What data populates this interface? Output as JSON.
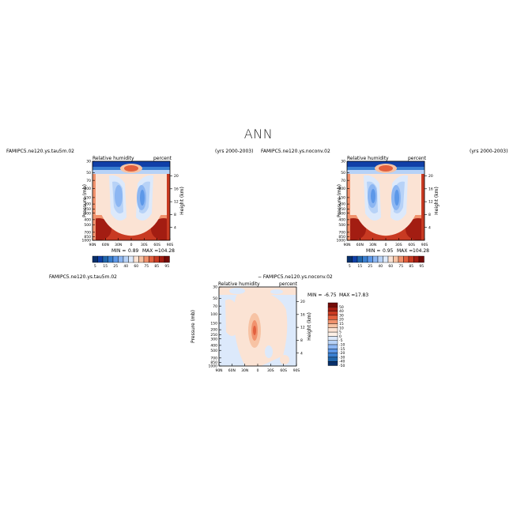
{
  "figure": {
    "title": "ANN"
  },
  "chart_data": [
    {
      "type": "heatmap",
      "case_name": "FAMIPC5.ne120.ys.tau5m.02",
      "years": "(yrs 2000-2003)",
      "variable": "Relative humidity",
      "units": "percent",
      "ylabel": "Pressure (mb)",
      "ylabel_right": "Height (km)",
      "x_ticks": [
        "90N",
        "60N",
        "30N",
        "0",
        "30S",
        "60S",
        "90S"
      ],
      "y_ticks": [
        1000,
        850,
        700,
        500,
        400,
        300,
        250,
        200,
        150,
        100,
        70,
        50,
        30
      ],
      "y_ticks_right": [
        4,
        8,
        12,
        16,
        20
      ],
      "colorbar_levels": [
        5,
        10,
        15,
        20,
        25,
        30,
        40,
        50,
        60,
        70,
        75,
        80,
        85,
        90,
        95
      ],
      "colorbar_labels": [
        "5",
        "15",
        "25",
        "40",
        "60",
        "75",
        "85",
        "95"
      ],
      "min_label": "MIN =",
      "min": "0.89",
      "max_label": "MAX =",
      "max": "104.28"
    },
    {
      "type": "heatmap",
      "case_name": "FAMIPC5.ne120.ys.noconv.02",
      "years": "(yrs 2000-2003)",
      "variable": "Relative humidity",
      "units": "percent",
      "ylabel": "Pressure (mb)",
      "ylabel_right": "Height (km)",
      "x_ticks": [
        "90N",
        "60N",
        "30N",
        "0",
        "30S",
        "60S",
        "90S"
      ],
      "y_ticks": [
        1000,
        850,
        700,
        500,
        400,
        300,
        250,
        200,
        150,
        100,
        70,
        50,
        30
      ],
      "y_ticks_right": [
        4,
        8,
        12,
        16,
        20
      ],
      "colorbar_levels": [
        5,
        10,
        15,
        20,
        25,
        30,
        40,
        50,
        60,
        70,
        75,
        80,
        85,
        90,
        95
      ],
      "colorbar_labels": [
        "5",
        "15",
        "25",
        "40",
        "60",
        "75",
        "85",
        "95"
      ],
      "min_label": "MIN =",
      "min": "0.95",
      "max_label": "MAX =",
      "max": "104.28"
    },
    {
      "type": "heatmap",
      "case_name": "FAMIPC5.ne120.ys.tau5m.02",
      "diff_label": "− FAMIPC5.ne120.ys.noconv.02",
      "variable": "Relative humidity",
      "units": "percent",
      "ylabel": "Pressure (mb)",
      "ylabel_right": "Height (km)",
      "x_ticks": [
        "90N",
        "60N",
        "30N",
        "0",
        "30S",
        "60S",
        "90S"
      ],
      "y_ticks": [
        1000,
        850,
        700,
        500,
        400,
        300,
        250,
        200,
        150,
        100,
        70,
        50,
        30
      ],
      "y_ticks_right": [
        4,
        8,
        12,
        16,
        20
      ],
      "colorbar_levels": [
        50,
        40,
        30,
        20,
        15,
        10,
        5,
        0,
        -5,
        -10,
        -15,
        -20,
        -30,
        -40,
        -50
      ],
      "colorbar_labels": [
        "50",
        "40",
        "30",
        "20",
        "15",
        "10",
        "5",
        "0",
        "-5",
        "-10",
        "-15",
        "-20",
        "-30",
        "-40",
        "-50"
      ],
      "min_label": "MIN =",
      "min": "-6.75",
      "max_label": "MAX =",
      "max": "17.83"
    }
  ],
  "colors": {
    "abs_scale": [
      "#08306b",
      "#1040a8",
      "#2166ac",
      "#3a7fd0",
      "#5d98e8",
      "#8cb6f2",
      "#b7d2f7",
      "#dce9fb",
      "#fbe3d4",
      "#f7c3a4",
      "#f1926d",
      "#e2603e",
      "#c83a22",
      "#a31d12",
      "#730a07"
    ],
    "diff_scale": [
      "#730a07",
      "#a31d12",
      "#c83a22",
      "#e2603e",
      "#f1926d",
      "#f7c3a4",
      "#fbe3d4",
      "#fdf0e6",
      "#dce9fb",
      "#b7d2f7",
      "#8cb6f2",
      "#5d98e8",
      "#3a7fd0",
      "#2166ac",
      "#08306b"
    ]
  }
}
